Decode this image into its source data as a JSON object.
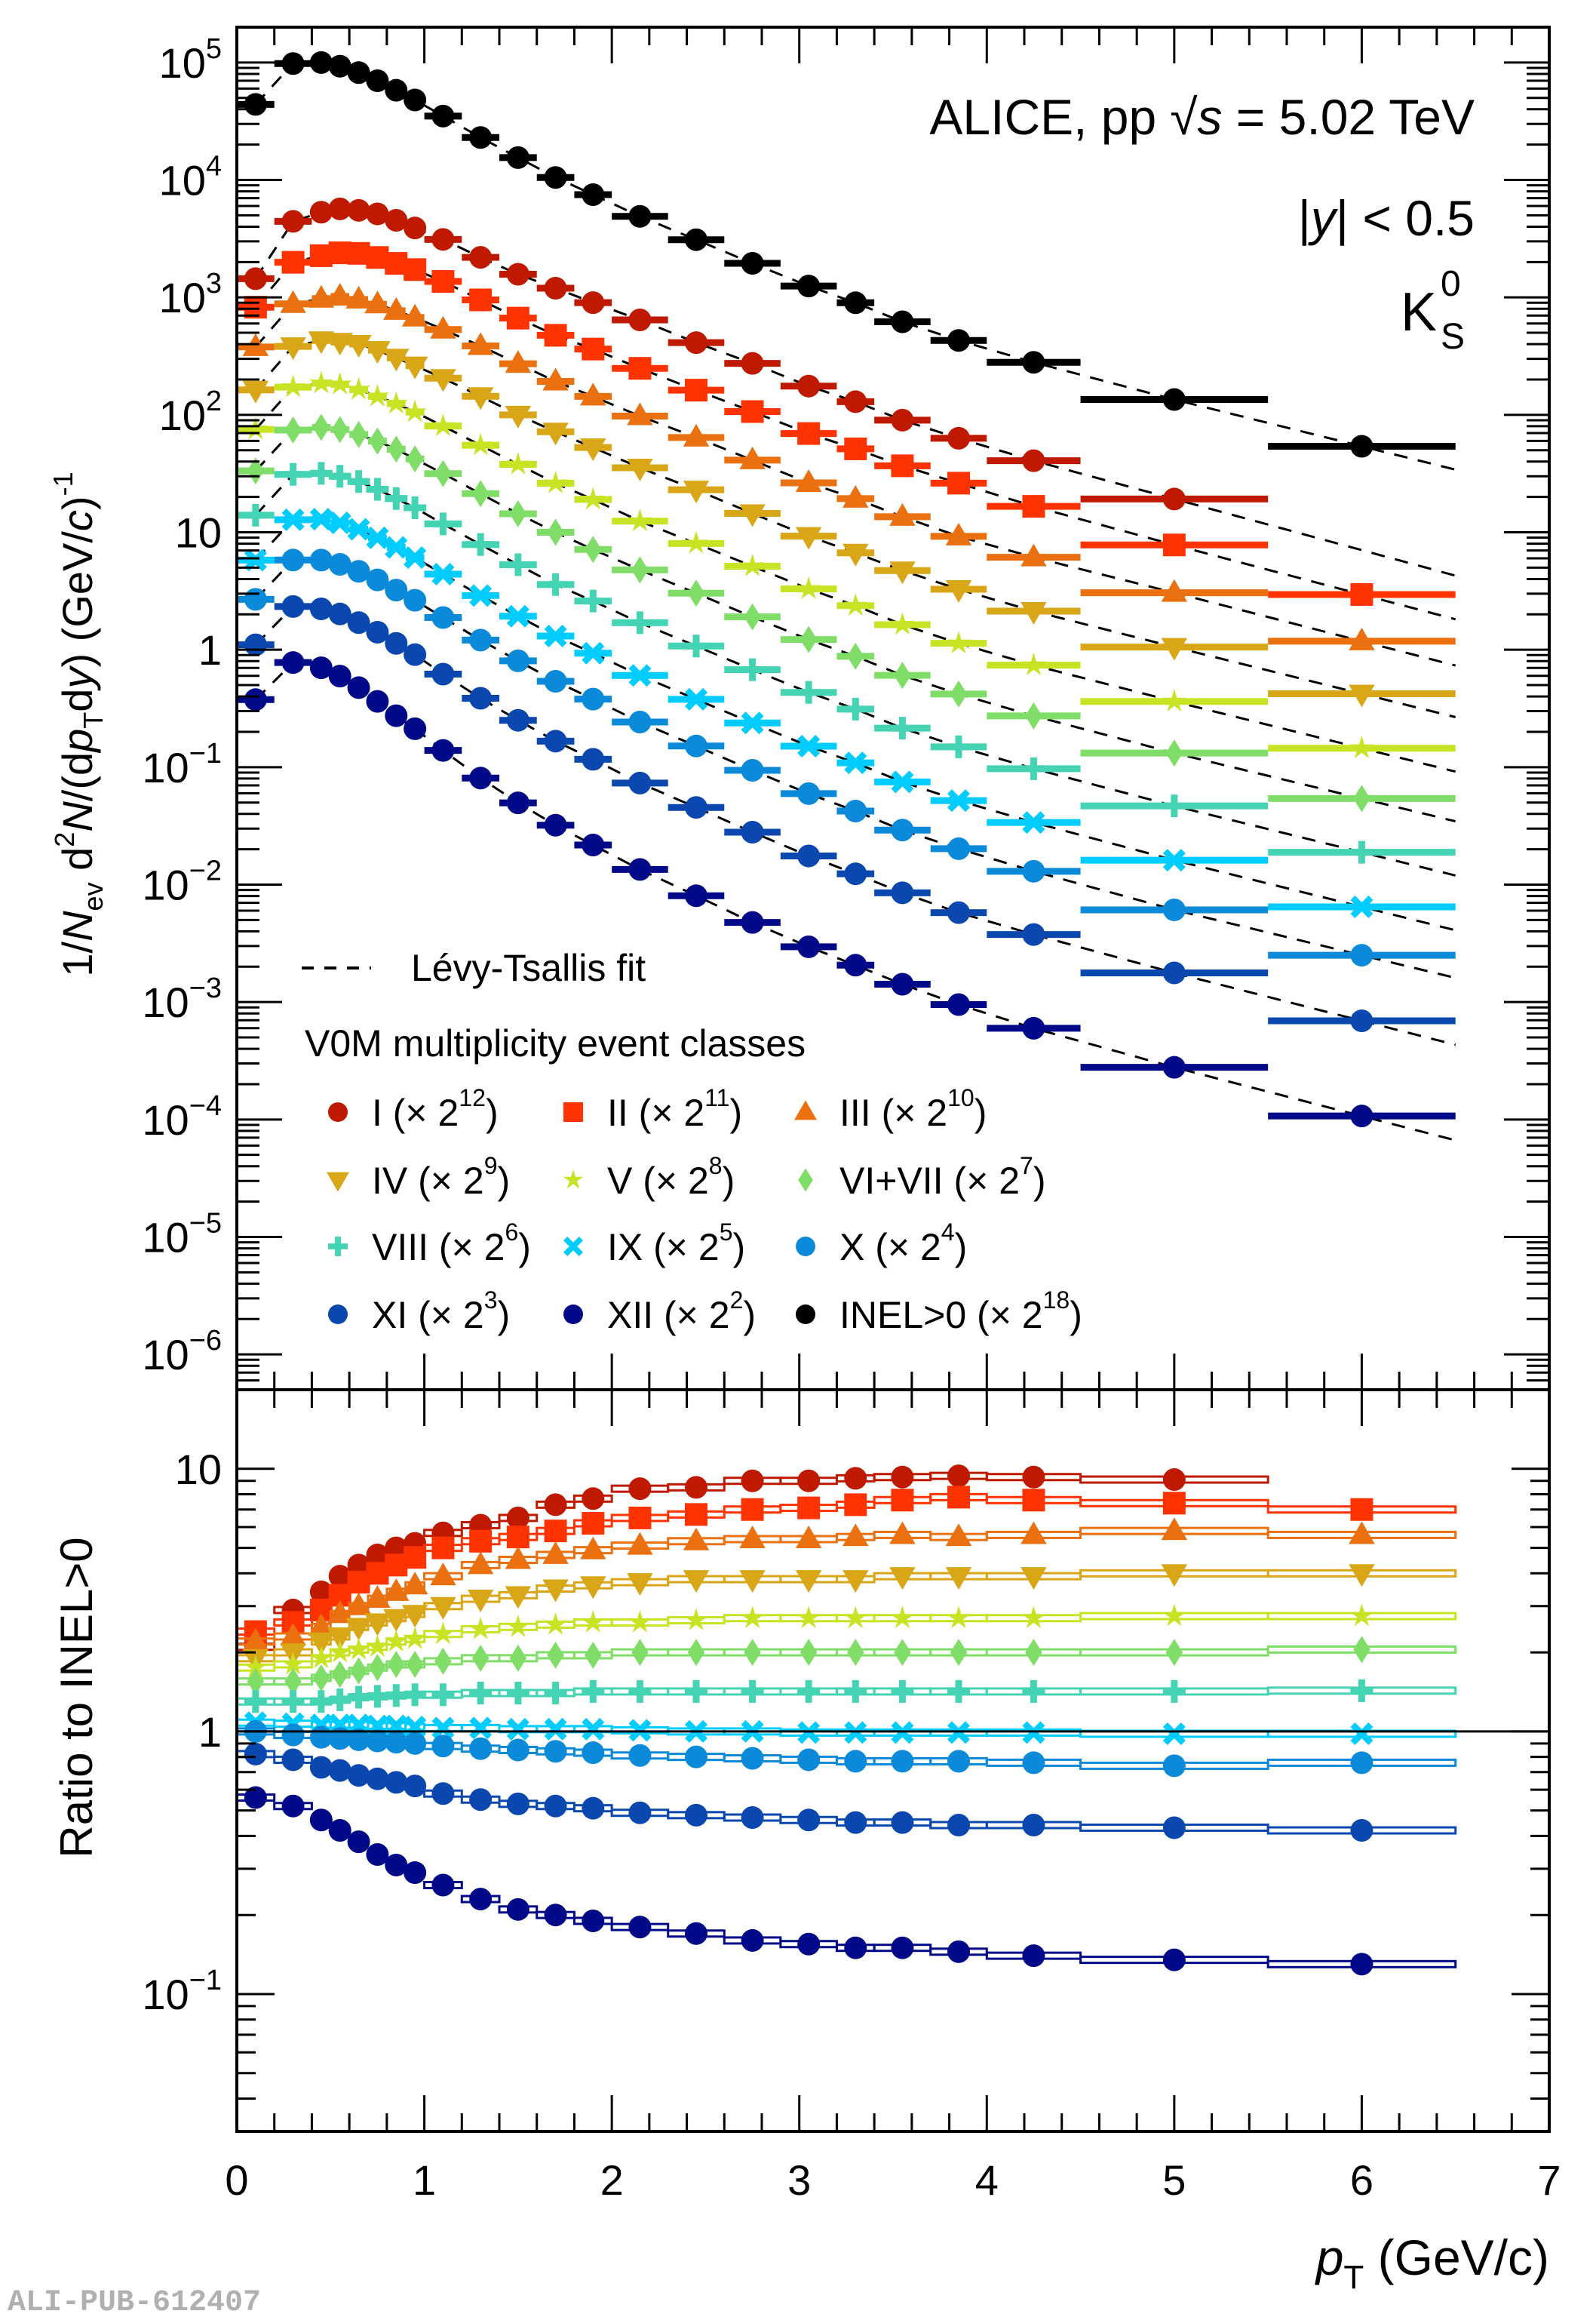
{
  "chart_data": {
    "type": "scatter",
    "title": "",
    "annotations": {
      "experiment": "ALICE, pp",
      "energy_prefix": "√",
      "energy_var": "s",
      "energy_value": " = 5.02 TeV",
      "rapidity_var": "y",
      "rapidity_text": "| < 0.5",
      "particle": "K",
      "particle_sup": "0",
      "particle_sub": "S",
      "watermark": "ALI-PUB-612407"
    },
    "xlabel": "p",
    "xlabel_sub": "T",
    "xlabel_unit": " (GeV/c)",
    "xlim": [
      0,
      7
    ],
    "xticks": [
      "0",
      "1",
      "2",
      "3",
      "4",
      "5",
      "6",
      "7"
    ],
    "top_panel": {
      "ylabel": "1/N_ev d²N/(dp_T dy)  (GeV/c)^-1",
      "ylabel_parts": [
        "1/",
        "N",
        "ev",
        " d",
        "2",
        "N/(d",
        "p",
        "T",
        "d",
        "y",
        ")  (GeV/",
        "c",
        ")",
        "-1"
      ],
      "yscale": "log",
      "ylim": [
        5e-07,
        200000.0
      ],
      "yticks": [
        {
          "value": 100000.0,
          "base": "10",
          "exp": "5"
        },
        {
          "value": 10000.0,
          "base": "10",
          "exp": "4"
        },
        {
          "value": 1000.0,
          "base": "10",
          "exp": "3"
        },
        {
          "value": 100.0,
          "base": "10",
          "exp": "2"
        },
        {
          "value": 10,
          "base": "10",
          "exp": ""
        },
        {
          "value": 1,
          "base": "1",
          "exp": ""
        },
        {
          "value": 0.1,
          "base": "10",
          "exp": "−1"
        },
        {
          "value": 0.01,
          "base": "10",
          "exp": "−2"
        },
        {
          "value": 0.001,
          "base": "10",
          "exp": "−3"
        },
        {
          "value": 0.0001,
          "base": "10",
          "exp": "−4"
        },
        {
          "value": 1e-05,
          "base": "10",
          "exp": "−5"
        },
        {
          "value": 1e-06,
          "base": "10",
          "exp": "−6"
        }
      ],
      "fit_label": "Lévy-Tsallis fit",
      "legend_header": "V0M multiplicity event classes",
      "legend_placement": "bottom-left"
    },
    "bottom_panel": {
      "ylabel": "Ratio to INEL>0",
      "yscale": "log",
      "ylim": [
        0.03,
        20
      ],
      "yticks": [
        {
          "value": 10,
          "base": "10",
          "exp": ""
        },
        {
          "value": 1,
          "base": "1",
          "exp": ""
        },
        {
          "value": 0.1,
          "base": "10",
          "exp": "−1"
        }
      ],
      "reference_line": 1
    },
    "bin_edges": [
      0,
      0.2,
      0.4,
      0.5,
      0.6,
      0.7,
      0.8,
      0.9,
      1.0,
      1.2,
      1.4,
      1.6,
      1.8,
      2.0,
      2.3,
      2.6,
      2.9,
      3.2,
      3.4,
      3.7,
      4.0,
      4.5,
      5.5,
      6.5
    ],
    "x": [
      0.1,
      0.3,
      0.45,
      0.55,
      0.65,
      0.75,
      0.85,
      0.95,
      1.1,
      1.3,
      1.5,
      1.7,
      1.9,
      2.15,
      2.45,
      2.75,
      3.05,
      3.3,
      3.55,
      3.85,
      4.25,
      5.0,
      6.0
    ],
    "inel_spectrum_scaled": [
      44000,
      98000,
      100000,
      93000,
      82000,
      70000,
      58000,
      48000,
      35000,
      23000,
      15500,
      10500,
      7500,
      4900,
      3100,
      1950,
      1250,
      900,
      620,
      430,
      280,
      135,
      54
    ],
    "series": [
      {
        "name": "I",
        "label": "I (× 2",
        "exp": "12",
        "scale_power": 12,
        "color": "#bf1a00",
        "marker": "circle",
        "ratio": [
          2.1,
          2.9,
          3.4,
          3.9,
          4.3,
          4.7,
          5.0,
          5.2,
          5.7,
          6.1,
          6.5,
          7.3,
          7.7,
          8.4,
          8.5,
          9.0,
          9.0,
          9.2,
          9.3,
          9.4,
          9.3,
          9.1,
          null
        ]
      },
      {
        "name": "II",
        "label": "II (× 2",
        "exp": "11",
        "scale_power": 11,
        "color": "#ff3300",
        "marker": "square",
        "ratio": [
          2.4,
          2.6,
          2.9,
          3.3,
          3.7,
          4.0,
          4.3,
          4.6,
          5.0,
          5.3,
          5.5,
          5.8,
          6.2,
          6.5,
          6.7,
          7.0,
          7.1,
          7.3,
          7.6,
          7.8,
          7.6,
          7.4,
          7.0
        ]
      },
      {
        "name": "III",
        "label": "III (× 2",
        "exp": "10",
        "scale_power": 10,
        "color": "#ea7010",
        "marker": "triangle-up",
        "ratio": [
          2.2,
          2.3,
          2.5,
          2.8,
          3.0,
          3.2,
          3.4,
          3.6,
          3.9,
          4.3,
          4.5,
          4.7,
          4.9,
          5.1,
          5.3,
          5.4,
          5.4,
          5.5,
          5.6,
          5.5,
          5.6,
          5.8,
          5.6
        ]
      },
      {
        "name": "IV",
        "label": "IV (× 2",
        "exp": "9",
        "scale_power": 9,
        "color": "#d8a617",
        "marker": "triangle-down",
        "ratio": [
          1.9,
          2.0,
          2.2,
          2.3,
          2.5,
          2.6,
          2.7,
          2.8,
          3.0,
          3.2,
          3.3,
          3.5,
          3.6,
          3.7,
          3.8,
          3.8,
          3.8,
          3.8,
          3.9,
          3.9,
          3.9,
          4.0,
          4.0
        ]
      },
      {
        "name": "V",
        "label": "V (× 2",
        "exp": "8",
        "scale_power": 8,
        "color": "#c8e324",
        "marker": "star",
        "ratio": [
          1.75,
          1.8,
          1.9,
          2.0,
          2.05,
          2.1,
          2.2,
          2.25,
          2.35,
          2.45,
          2.5,
          2.55,
          2.6,
          2.6,
          2.65,
          2.7,
          2.7,
          2.7,
          2.7,
          2.7,
          2.7,
          2.75,
          2.75
        ]
      },
      {
        "name": "VI+VII",
        "label": "VI+VII (× 2",
        "exp": "7",
        "scale_power": 7,
        "color": "#80de68",
        "marker": "diamond",
        "ratio": [
          1.55,
          1.55,
          1.6,
          1.65,
          1.7,
          1.75,
          1.8,
          1.8,
          1.85,
          1.9,
          1.9,
          1.95,
          1.95,
          2.0,
          2.0,
          2.0,
          2.0,
          2.0,
          2.0,
          2.0,
          2.0,
          2.0,
          2.05
        ]
      },
      {
        "name": "VIII",
        "label": "VIII (× 2",
        "exp": "6",
        "scale_power": 6,
        "color": "#44d4b4",
        "marker": "cross",
        "ratio": [
          1.3,
          1.3,
          1.3,
          1.32,
          1.35,
          1.36,
          1.37,
          1.38,
          1.38,
          1.4,
          1.4,
          1.4,
          1.42,
          1.42,
          1.42,
          1.42,
          1.42,
          1.42,
          1.42,
          1.42,
          1.42,
          1.42,
          1.43
        ]
      },
      {
        "name": "IX",
        "label": "IX (× 2",
        "exp": "5",
        "scale_power": 5,
        "color": "#00ccff",
        "marker": "x",
        "ratio": [
          1.08,
          1.07,
          1.06,
          1.06,
          1.06,
          1.05,
          1.05,
          1.04,
          1.03,
          1.03,
          1.02,
          1.02,
          1.02,
          1.01,
          1.0,
          1.0,
          0.99,
          0.99,
          0.99,
          0.99,
          0.99,
          0.98,
          0.98
        ]
      },
      {
        "name": "X",
        "label": "X (× 2",
        "exp": "4",
        "scale_power": 4,
        "color": "#0a8ad8",
        "marker": "circle",
        "ratio": [
          1.0,
          0.97,
          0.95,
          0.94,
          0.93,
          0.92,
          0.91,
          0.9,
          0.88,
          0.86,
          0.85,
          0.84,
          0.83,
          0.81,
          0.8,
          0.79,
          0.78,
          0.77,
          0.77,
          0.77,
          0.76,
          0.74,
          0.76
        ]
      },
      {
        "name": "XI",
        "label": "XI (× 2",
        "exp": "3",
        "scale_power": 3,
        "color": "#0a48b0",
        "marker": "circle",
        "ratio": [
          0.82,
          0.78,
          0.73,
          0.71,
          0.68,
          0.66,
          0.64,
          0.62,
          0.58,
          0.55,
          0.53,
          0.52,
          0.51,
          0.49,
          0.48,
          0.47,
          0.46,
          0.45,
          0.45,
          0.44,
          0.44,
          0.43,
          0.42
        ]
      },
      {
        "name": "XII",
        "label": "XII (× 2",
        "exp": "2",
        "scale_power": 2,
        "color": "#000a88",
        "marker": "circle",
        "ratio": [
          0.56,
          0.52,
          0.46,
          0.42,
          0.38,
          0.34,
          0.31,
          0.29,
          0.26,
          0.23,
          0.21,
          0.2,
          0.19,
          0.18,
          0.17,
          0.16,
          0.155,
          0.15,
          0.15,
          0.145,
          0.14,
          0.135,
          0.13
        ]
      },
      {
        "name": "INEL>0",
        "label": "INEL>0 (× 2",
        "exp": "18",
        "scale_power": 18,
        "color": "#000000",
        "marker": "circle",
        "ratio": null
      }
    ]
  }
}
